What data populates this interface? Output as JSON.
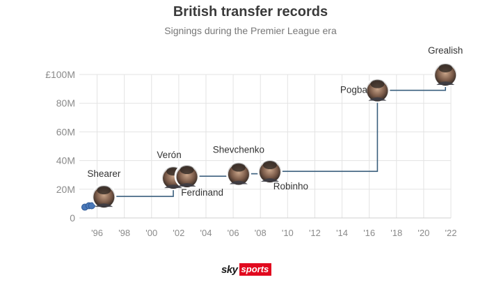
{
  "chart_data": {
    "type": "line",
    "step": true,
    "title": "British transfer records",
    "subtitle": "Signings during the Premier League era",
    "xlim": [
      1995,
      2022
    ],
    "ylim": [
      0,
      100
    ],
    "x_ticks": [
      {
        "value": 1996,
        "label": "'96"
      },
      {
        "value": 1998,
        "label": "'98"
      },
      {
        "value": 2000,
        "label": "'00"
      },
      {
        "value": 2002,
        "label": "'02"
      },
      {
        "value": 2004,
        "label": "'04"
      },
      {
        "value": 2006,
        "label": "'06"
      },
      {
        "value": 2008,
        "label": "'08"
      },
      {
        "value": 2010,
        "label": "'10"
      },
      {
        "value": 2012,
        "label": "'12"
      },
      {
        "value": 2014,
        "label": "'14"
      },
      {
        "value": 2016,
        "label": "'16"
      },
      {
        "value": 2018,
        "label": "'18"
      },
      {
        "value": 2020,
        "label": "'20"
      },
      {
        "value": 2022,
        "label": "'22"
      }
    ],
    "y_ticks": [
      {
        "value": 0,
        "label": "0"
      },
      {
        "value": 20,
        "label": "20M"
      },
      {
        "value": 40,
        "label": "40M"
      },
      {
        "value": 60,
        "label": "60M"
      },
      {
        "value": 80,
        "label": "80M"
      },
      {
        "value": 100,
        "label": "£100M"
      }
    ],
    "grid": true,
    "points": [
      {
        "x": 1995.1,
        "y": 7.5,
        "name": ""
      },
      {
        "x": 1995.4,
        "y": 8.5,
        "name": ""
      },
      {
        "x": 1995.6,
        "y": 8.5,
        "name": ""
      },
      {
        "x": 1996.5,
        "y": 15,
        "name": "Shearer"
      },
      {
        "x": 2001.6,
        "y": 28.1,
        "name": "Verón"
      },
      {
        "x": 2002.6,
        "y": 29.1,
        "name": "Ferdinand"
      },
      {
        "x": 2006.4,
        "y": 30.8,
        "name": "Shevchenko"
      },
      {
        "x": 2008.7,
        "y": 32.5,
        "name": "Robinho"
      },
      {
        "x": 2016.6,
        "y": 89,
        "name": "Pogba"
      },
      {
        "x": 2021.6,
        "y": 100,
        "name": "Grealish"
      }
    ],
    "line_color": "#3a5f7d",
    "marker_color": "#4a78b8"
  },
  "branding": {
    "sky": "sky",
    "sports": "sports"
  }
}
